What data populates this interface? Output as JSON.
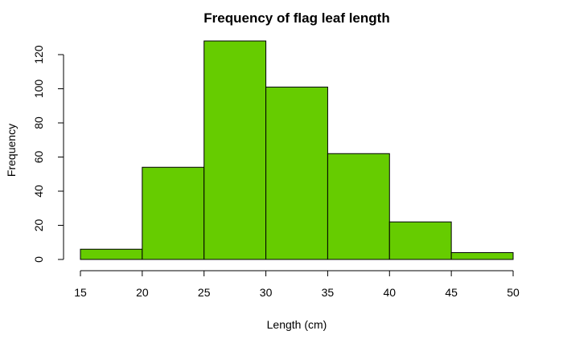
{
  "chart_data": {
    "type": "bar",
    "subtype": "histogram",
    "title": "Frequency of flag leaf length",
    "xlabel": "Length (cm)",
    "ylabel": "Frequency",
    "bins": [
      {
        "from": 15,
        "to": 20,
        "value": 6
      },
      {
        "from": 20,
        "to": 25,
        "value": 54
      },
      {
        "from": 25,
        "to": 30,
        "value": 128
      },
      {
        "from": 30,
        "to": 35,
        "value": 101
      },
      {
        "from": 35,
        "to": 40,
        "value": 62
      },
      {
        "from": 40,
        "to": 45,
        "value": 22
      },
      {
        "from": 45,
        "to": 50,
        "value": 4
      }
    ],
    "x_ticks": [
      15,
      20,
      25,
      30,
      35,
      40,
      45,
      50
    ],
    "y_ticks": [
      0,
      20,
      40,
      60,
      80,
      100,
      120
    ],
    "xlim": [
      15,
      50
    ],
    "ylim": [
      0,
      128
    ],
    "bar_color": "#66cc00",
    "grid": false,
    "legend": false
  }
}
